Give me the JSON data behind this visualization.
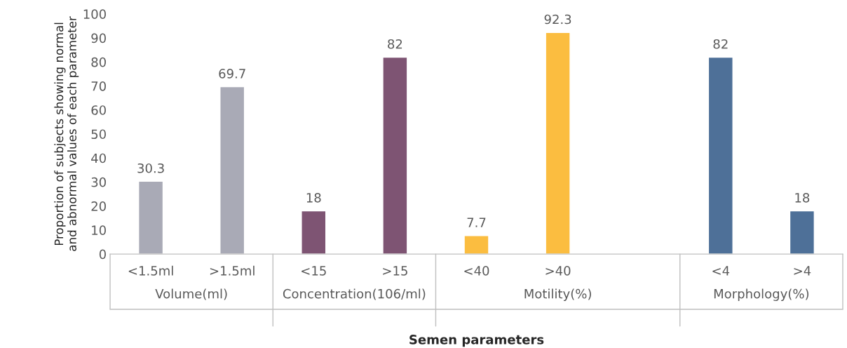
{
  "chart_data": {
    "type": "bar",
    "xlabel": "Semen parameters",
    "ylabel": "Proportion of subjects showing normal\nand abnormal values of each parameter",
    "categories": [
      "<1.5ml",
      ">1.5ml",
      "<15",
      ">15",
      "<40",
      ">40",
      null,
      "<4",
      ">4"
    ],
    "values": [
      30.3,
      69.7,
      18,
      82,
      7.7,
      92.3,
      null,
      82,
      18
    ],
    "colors": [
      "#a9aab6",
      "#a9aab6",
      "#7e5473",
      "#7e5473",
      "#fbbd40",
      "#fbbd40",
      "#fbbd40",
      "#4e7098",
      "#4e7098"
    ],
    "data_labels": true,
    "ylim": [
      0,
      100
    ],
    "yticks": [
      0,
      10,
      20,
      30,
      40,
      50,
      60,
      70,
      80,
      90,
      100
    ],
    "grid": false,
    "legend": false,
    "annotations": [
      "Volume(ml)",
      "Concentration(106/ml)",
      "Motility(%)",
      "Morphology(%)"
    ]
  }
}
